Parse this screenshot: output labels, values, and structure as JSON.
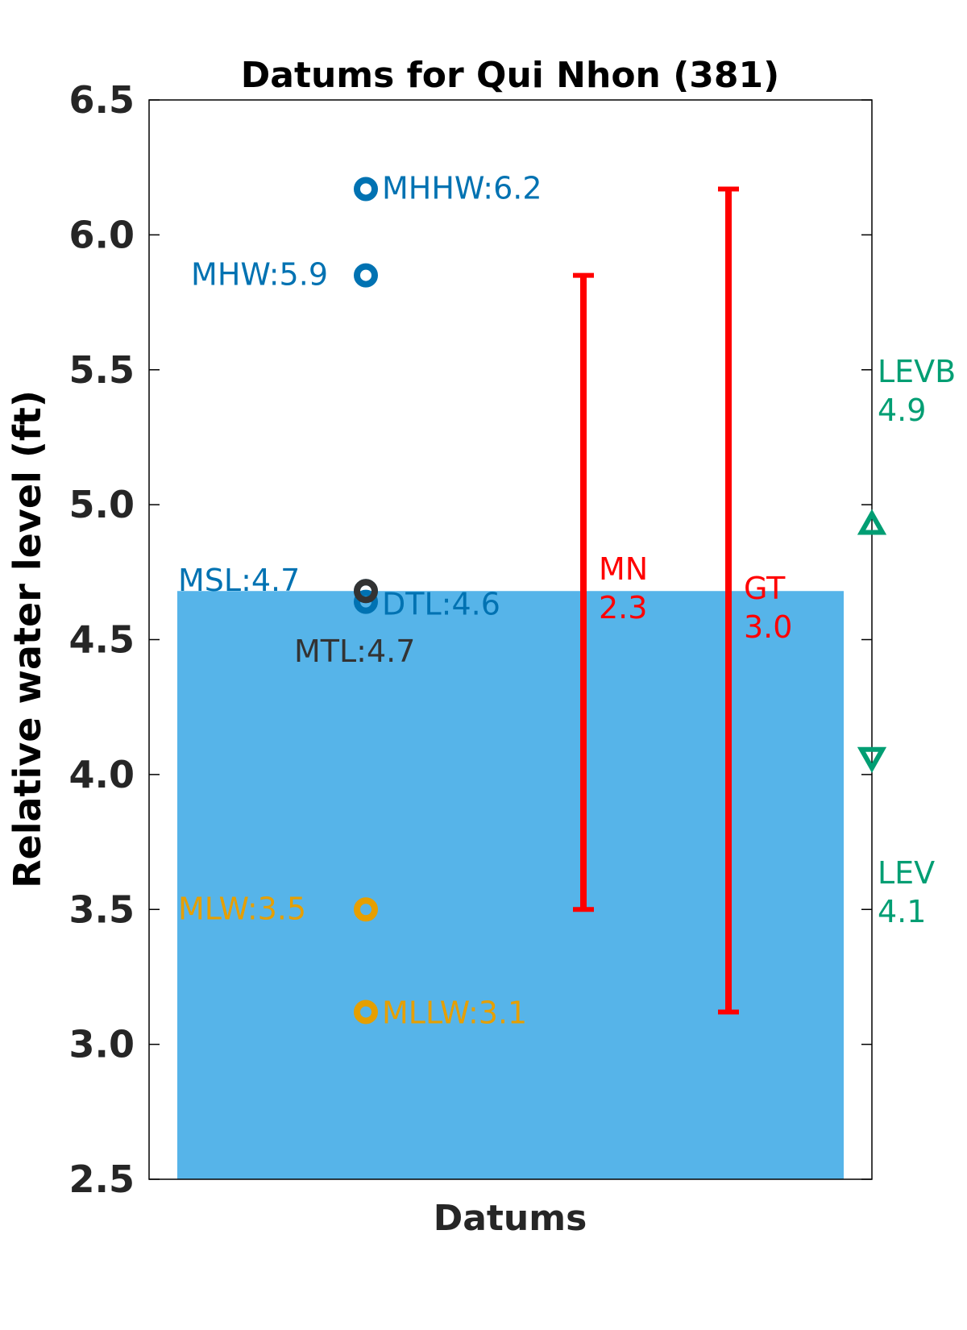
{
  "chart_data": {
    "type": "scatter",
    "title": "Datums for Qui Nhon (381)",
    "xlabel": "Datums",
    "ylabel": "Relative water level (ft)",
    "ylim": [
      2.5,
      6.5
    ],
    "yticks": [
      "2.5",
      "3.0",
      "3.5",
      "4.0",
      "4.5",
      "5.0",
      "5.5",
      "6.0",
      "6.5"
    ],
    "grid": false,
    "fill": {
      "top": 4.68,
      "bottom": 2.5,
      "color": "#56B4E9"
    },
    "points": [
      {
        "label": "MHHW:6.2",
        "value": 6.17,
        "color": "#0072B2"
      },
      {
        "label": "MHW:5.9",
        "value": 5.85,
        "color": "#0072B2"
      },
      {
        "label": "MSL:4.7",
        "value": 4.68,
        "color": "#0072B2"
      },
      {
        "label": "DTL:4.6",
        "value": 4.64,
        "color": "#0072B2"
      },
      {
        "label": "MTL:4.7",
        "value": 4.68,
        "color": "#333333"
      },
      {
        "label": "MLW:3.5",
        "value": 3.5,
        "color": "#E69F00"
      },
      {
        "label": "MLLW:3.1",
        "value": 3.12,
        "color": "#E69F00"
      }
    ],
    "ranges": [
      {
        "name": "MN",
        "value_label": "2.3",
        "low": 3.5,
        "high": 5.85,
        "color": "#FF0000"
      },
      {
        "name": "GT",
        "value_label": "3.0",
        "low": 3.12,
        "high": 6.17,
        "color": "#FF0000"
      }
    ],
    "extremes": [
      {
        "name": "LEVB",
        "value_label": "4.9",
        "value": 4.93,
        "marker": "triangle-up",
        "color": "#009E73"
      },
      {
        "name": "LEV",
        "value_label": "4.1",
        "value": 4.06,
        "marker": "triangle-down",
        "color": "#009E73"
      }
    ]
  }
}
